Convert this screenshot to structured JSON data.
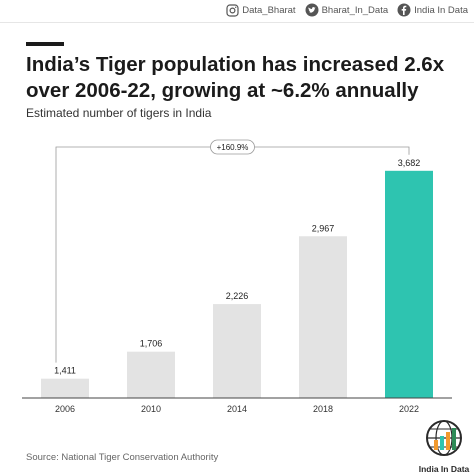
{
  "social": [
    {
      "icon": "instagram-icon",
      "handle": "Data_Bharat"
    },
    {
      "icon": "twitter-icon",
      "handle": "Bharat_In_Data"
    },
    {
      "icon": "facebook-icon",
      "handle": "India In Data"
    }
  ],
  "title_line1": "India’s Tiger population has increased 2.6x",
  "title_line2": "over 2006-22, growing at ~6.2% annually",
  "source": "Source: National Tiger Conservation Authority",
  "logo_text": "India In Data",
  "colors": {
    "bar_default": "#e3e3e3",
    "bar_highlight": "#2ec4b0",
    "bracket": "#9a9a9a",
    "axis": "#444444"
  },
  "chart_data": {
    "type": "bar",
    "subtitle": "Estimated number of tigers in India",
    "categories": [
      "2006",
      "2010",
      "2014",
      "2018",
      "2022"
    ],
    "values": [
      1411,
      1706,
      2226,
      2967,
      3682
    ],
    "value_labels": [
      "1,411",
      "1,706",
      "2,226",
      "2,967",
      "3,682"
    ],
    "highlight_index": 4,
    "change_annotation": "+160.9%",
    "ylim": [
      1200,
      3800
    ],
    "grid": false,
    "legend": "none"
  }
}
